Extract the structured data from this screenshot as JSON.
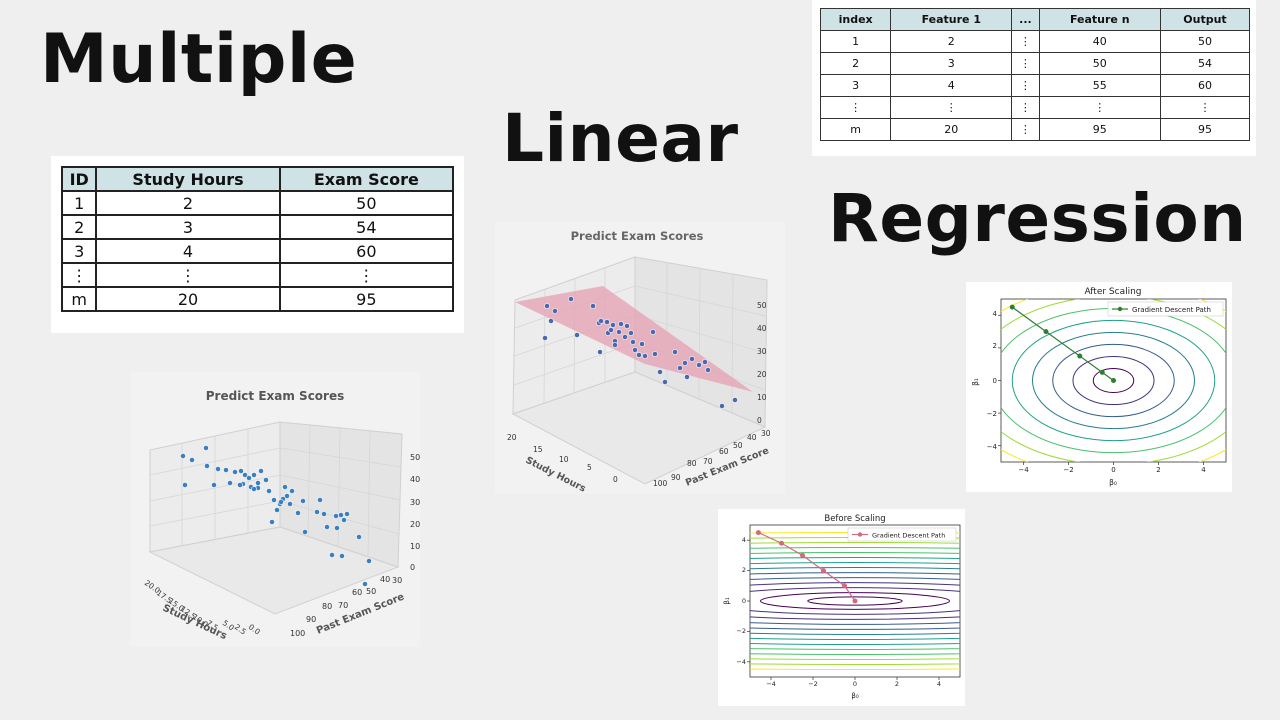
{
  "title_words": [
    "Multiple",
    "Linear",
    "Regression"
  ],
  "table_simple": {
    "headers": [
      "ID",
      "Study Hours",
      "Exam Score"
    ],
    "rows": [
      [
        "1",
        "2",
        "50"
      ],
      [
        "2",
        "3",
        "54"
      ],
      [
        "3",
        "4",
        "60"
      ],
      [
        "⋮",
        "⋮",
        "⋮"
      ],
      [
        "m",
        "20",
        "95"
      ]
    ]
  },
  "table_general": {
    "headers": [
      "index",
      "Feature 1",
      "...",
      "Feature n",
      "Output"
    ],
    "rows": [
      [
        "1",
        "2",
        "⋮",
        "40",
        "50"
      ],
      [
        "2",
        "3",
        "⋮",
        "50",
        "54"
      ],
      [
        "3",
        "4",
        "⋮",
        "55",
        "60"
      ],
      [
        "⋮",
        "⋮",
        "⋮",
        "⋮",
        "⋮"
      ],
      [
        "m",
        "20",
        "⋮",
        "95",
        "95"
      ]
    ]
  },
  "plot3d_scatter": {
    "title": "Predict Exam Scores",
    "xlabel": "Study Hours",
    "ylabel": "Past Exam Score",
    "x_ticks": [
      "20.0",
      "17.5",
      "15.0",
      "12.5",
      "10.0",
      "7.5",
      "5.0",
      "2.5",
      "0.0"
    ],
    "y_ticks": [
      "100",
      "90",
      "80",
      "70",
      "60",
      "50",
      "40",
      "30"
    ],
    "z_ticks": [
      "0",
      "10",
      "20",
      "30",
      "40",
      "50"
    ],
    "point_color": "#3a7fbf"
  },
  "plot3d_plane": {
    "title": "Predict Exam Scores",
    "xlabel": "Study Hours",
    "ylabel": "Past Exam Score",
    "x_ticks": [
      "20",
      "15",
      "10",
      "5",
      "0"
    ],
    "y_ticks": [
      "100",
      "90",
      "80",
      "70",
      "60",
      "50",
      "40",
      "30"
    ],
    "z_ticks": [
      "0",
      "10",
      "20",
      "30",
      "40",
      "50"
    ],
    "point_color": "#4a68b0",
    "plane_color": "#e7a0b2"
  },
  "chart_data": [
    {
      "type": "line",
      "title": "After Scaling",
      "xlabel": "β₀",
      "ylabel": "β₁",
      "x_ticks": [
        "−4",
        "−2",
        "0",
        "2",
        "4"
      ],
      "y_ticks": [
        "4",
        "2",
        "0",
        "−2",
        "−4"
      ],
      "xlim": [
        -5,
        5
      ],
      "ylim": [
        -5,
        5
      ],
      "legend": "top-right",
      "series": [
        {
          "name": "Gradient Descent Path",
          "color": "#2e7d32",
          "x": [
            -4.5,
            -3.0,
            -1.5,
            -0.5,
            0.0
          ],
          "y": [
            4.5,
            3.0,
            1.5,
            0.5,
            0.0
          ]
        }
      ],
      "contours": "circular",
      "path_color": "#2e7d32"
    },
    {
      "type": "line",
      "title": "Before Scaling",
      "xlabel": "β₀",
      "ylabel": "β₁",
      "x_ticks": [
        "−4",
        "−2",
        "0",
        "2",
        "4"
      ],
      "y_ticks": [
        "4",
        "2",
        "0",
        "−2",
        "−4"
      ],
      "xlim": [
        -5,
        5
      ],
      "ylim": [
        -5,
        5
      ],
      "legend": "top-right",
      "series": [
        {
          "name": "Gradient Descent Path",
          "color": "#d46a7e",
          "x": [
            -4.6,
            -3.5,
            -2.5,
            -1.5,
            -0.5,
            0.0
          ],
          "y": [
            4.5,
            3.8,
            3.0,
            2.0,
            1.0,
            0.0
          ]
        }
      ],
      "contours": "elongated",
      "path_color": "#d46a7e"
    }
  ]
}
